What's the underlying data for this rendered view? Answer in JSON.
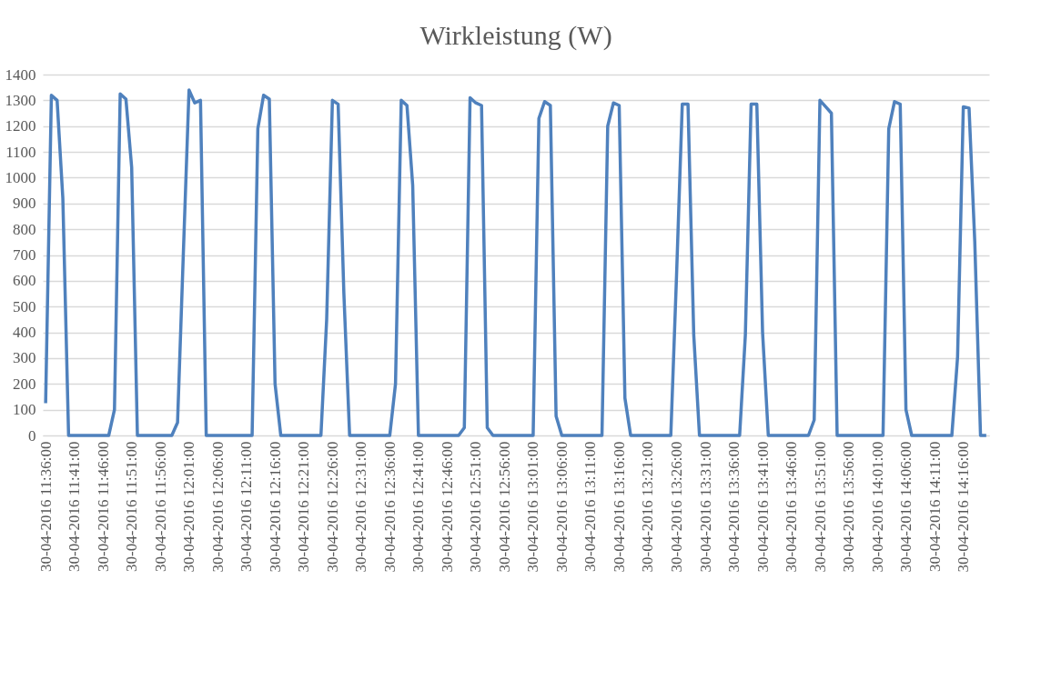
{
  "chart_data": {
    "type": "line",
    "title": "Wirkleistung (W)",
    "categories": [
      "30-04-2016 11:36:00",
      null,
      null,
      null,
      null,
      "30-04-2016 11:41:00",
      null,
      null,
      null,
      null,
      "30-04-2016 11:46:00",
      null,
      null,
      null,
      null,
      "30-04-2016 11:51:00",
      null,
      null,
      null,
      null,
      "30-04-2016 11:56:00",
      null,
      null,
      null,
      null,
      "30-04-2016 12:01:00",
      null,
      null,
      null,
      null,
      "30-04-2016 12:06:00",
      null,
      null,
      null,
      null,
      "30-04-2016 12:11:00",
      null,
      null,
      null,
      null,
      "30-04-2016 12:16:00",
      null,
      null,
      null,
      null,
      "30-04-2016 12:21:00",
      null,
      null,
      null,
      null,
      "30-04-2016 12:26:00",
      null,
      null,
      null,
      null,
      "30-04-2016 12:31:00",
      null,
      null,
      null,
      null,
      "30-04-2016 12:36:00",
      null,
      null,
      null,
      null,
      "30-04-2016 12:41:00",
      null,
      null,
      null,
      null,
      "30-04-2016 12:46:00",
      null,
      null,
      null,
      null,
      "30-04-2016 12:51:00",
      null,
      null,
      null,
      null,
      "30-04-2016 12:56:00",
      null,
      null,
      null,
      null,
      "30-04-2016 13:01:00",
      null,
      null,
      null,
      null,
      "30-04-2016 13:06:00",
      null,
      null,
      null,
      null,
      "30-04-2016 13:11:00",
      null,
      null,
      null,
      null,
      "30-04-2016 13:16:00",
      null,
      null,
      null,
      null,
      "30-04-2016 13:21:00",
      null,
      null,
      null,
      null,
      "30-04-2016 13:26:00",
      null,
      null,
      null,
      null,
      "30-04-2016 13:31:00",
      null,
      null,
      null,
      null,
      "30-04-2016 13:36:00",
      null,
      null,
      null,
      null,
      "30-04-2016 13:41:00",
      null,
      null,
      null,
      null,
      "30-04-2016 13:46:00",
      null,
      null,
      null,
      null,
      "30-04-2016 13:51:00",
      null,
      null,
      null,
      null,
      "30-04-2016 13:56:00",
      null,
      null,
      null,
      null,
      "30-04-2016 14:01:00",
      null,
      null,
      null,
      null,
      "30-04-2016 14:06:00",
      null,
      null,
      null,
      null,
      "30-04-2016 14:11:00",
      null,
      null,
      null,
      null,
      "30-04-2016 14:16:00",
      null,
      null,
      null,
      null
    ],
    "series": [
      {
        "color": "#4f81bd",
        "values": [
          125,
          1320,
          1300,
          920,
          0,
          0,
          0,
          0,
          0,
          0,
          0,
          0,
          100,
          1325,
          1305,
          1040,
          0,
          0,
          0,
          0,
          0,
          0,
          0,
          50,
          700,
          1340,
          1290,
          1300,
          0,
          0,
          0,
          0,
          0,
          0,
          0,
          0,
          0,
          1190,
          1320,
          1305,
          200,
          0,
          0,
          0,
          0,
          0,
          0,
          0,
          0,
          450,
          1300,
          1285,
          550,
          0,
          0,
          0,
          0,
          0,
          0,
          0,
          0,
          200,
          1300,
          1280,
          970,
          0,
          0,
          0,
          0,
          0,
          0,
          0,
          0,
          30,
          1310,
          1290,
          1280,
          30,
          0,
          0,
          0,
          0,
          0,
          0,
          0,
          0,
          1230,
          1295,
          1280,
          75,
          0,
          0,
          0,
          0,
          0,
          0,
          0,
          0,
          1200,
          1290,
          1280,
          145,
          0,
          0,
          0,
          0,
          0,
          0,
          0,
          0,
          620,
          1285,
          1285,
          390,
          0,
          0,
          0,
          0,
          0,
          0,
          0,
          0,
          390,
          1285,
          1285,
          400,
          0,
          0,
          0,
          0,
          0,
          0,
          0,
          0,
          60,
          1300,
          1275,
          1250,
          0,
          0,
          0,
          0,
          0,
          0,
          0,
          0,
          0,
          1190,
          1295,
          1285,
          100,
          0,
          0,
          0,
          0,
          0,
          0,
          0,
          0,
          305,
          1275,
          1270,
          750,
          0,
          0
        ]
      }
    ],
    "ylim": [
      0,
      1400
    ],
    "yticks": [
      0,
      100,
      200,
      300,
      400,
      500,
      600,
      700,
      800,
      900,
      1000,
      1100,
      1200,
      1300,
      1400
    ],
    "grid": "y",
    "legend": false,
    "marker": "none",
    "line_style": "solid"
  }
}
